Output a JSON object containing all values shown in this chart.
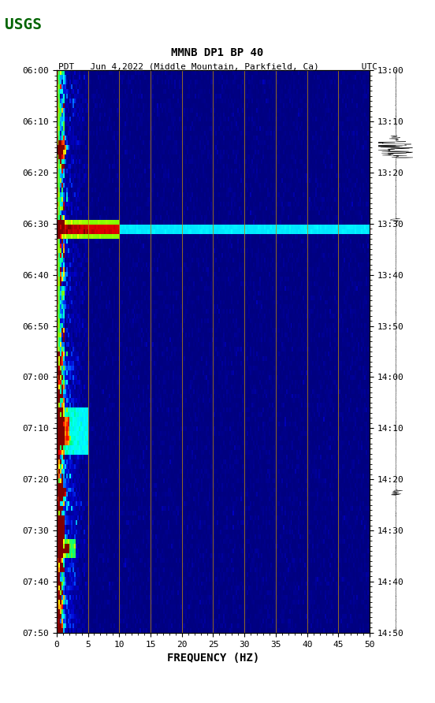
{
  "title_line1": "MMNB DP1 BP 40",
  "title_line2": "PDT   Jun 4,2022 (Middle Mountain, Parkfield, Ca)        UTC",
  "xlabel": "FREQUENCY (HZ)",
  "freq_min": 0,
  "freq_max": 50,
  "freq_ticks": [
    0,
    5,
    10,
    15,
    20,
    25,
    30,
    35,
    40,
    45,
    50
  ],
  "time_labels_left": [
    "06:00",
    "06:10",
    "06:20",
    "06:30",
    "06:40",
    "06:50",
    "07:00",
    "07:10",
    "07:20",
    "07:30",
    "07:40",
    "07:50"
  ],
  "time_labels_right": [
    "13:00",
    "13:10",
    "13:20",
    "13:30",
    "13:40",
    "13:50",
    "14:00",
    "14:10",
    "14:20",
    "14:30",
    "14:40",
    "14:50"
  ],
  "fig_width": 5.52,
  "fig_height": 8.92,
  "bg_color": "#ffffff",
  "spectrogram_bg": "#000080",
  "vertical_line_color": "#b8860b",
  "n_time": 120,
  "n_freq": 200
}
